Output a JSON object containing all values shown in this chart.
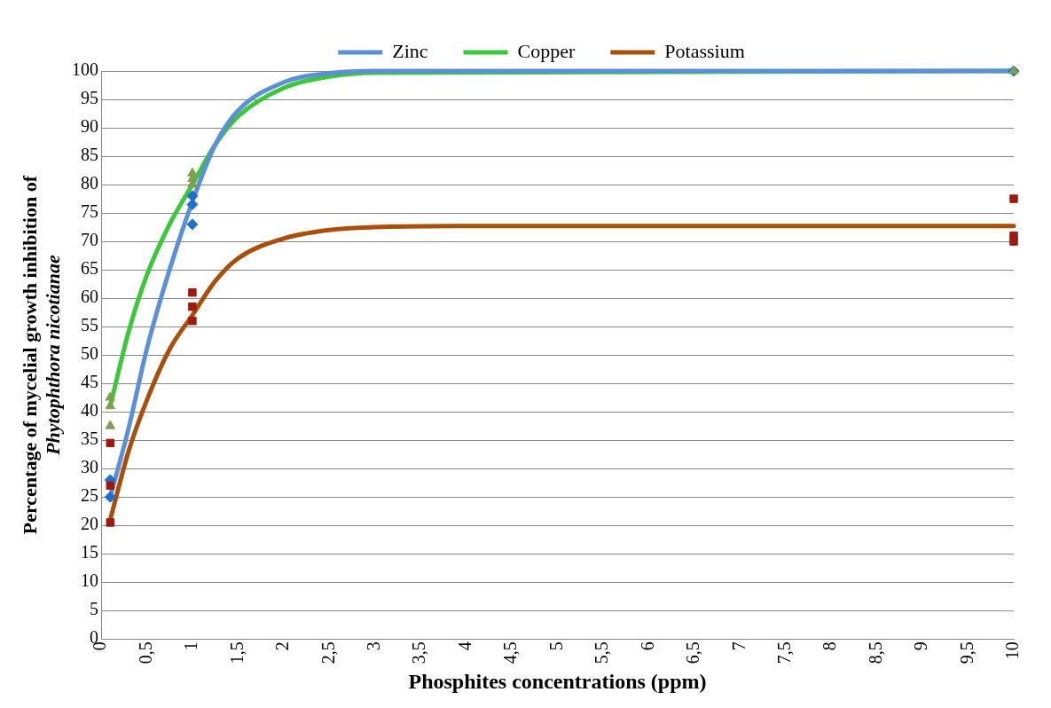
{
  "chart_data": {
    "type": "scatter",
    "xlabel": "Phosphites concentrations (ppm)",
    "ylabel": "Percentage of mycelial growth inhibition of\nPhytophthora nicotianae",
    "xlim": [
      0,
      10
    ],
    "ylim": [
      0,
      100
    ],
    "xticks": [
      0,
      {
        "value": 0.5,
        "label": "0,5"
      },
      1,
      {
        "value": 1.5,
        "label": "1,5"
      },
      2,
      {
        "value": 2.5,
        "label": "2,5"
      },
      3,
      {
        "value": 3.5,
        "label": "3,5"
      },
      4,
      {
        "value": 4.5,
        "label": "4,5"
      },
      5,
      {
        "value": 5.5,
        "label": "5,5"
      },
      6,
      {
        "value": 6.5,
        "label": "6,5"
      },
      7,
      {
        "value": 7.5,
        "label": "7,5"
      },
      8,
      {
        "value": 8.5,
        "label": "8,5"
      },
      9,
      {
        "value": 9.5,
        "label": "9,5"
      },
      10
    ],
    "yticks": [
      0,
      5,
      10,
      15,
      20,
      25,
      30,
      35,
      40,
      45,
      50,
      55,
      60,
      65,
      70,
      75,
      80,
      85,
      90,
      95,
      100
    ],
    "grid": "y",
    "legend": "top",
    "series": [
      {
        "type": "scatter",
        "marker": "diamond",
        "color": "#1f6fd0",
        "x": [
          0.1,
          0.1,
          1,
          1,
          1,
          10
        ],
        "values": [
          25,
          28,
          78,
          76.5,
          73,
          100
        ]
      },
      {
        "type": "scatter",
        "marker": "triangle",
        "color": "#7f9f4f",
        "x": [
          0.1,
          0.1,
          0.1,
          1,
          1,
          1,
          10
        ],
        "values": [
          42.5,
          41,
          37.5,
          82,
          81,
          80,
          100
        ]
      },
      {
        "type": "scatter",
        "marker": "square",
        "color": "#9c1b10",
        "x": [
          0.1,
          0.1,
          0.1,
          1,
          1,
          1,
          10,
          10,
          10
        ],
        "values": [
          34.5,
          27,
          20.5,
          61,
          58.5,
          56,
          77.5,
          71,
          70
        ]
      },
      {
        "type": "line",
        "name": "Zinc",
        "color": "#5b8fd6",
        "x": [
          0.1,
          0.3,
          0.5,
          0.75,
          1,
          1.25,
          1.5,
          2,
          2.5,
          3,
          10
        ],
        "values": [
          25,
          37,
          51,
          65,
          77,
          87,
          93,
          98,
          99.6,
          100,
          100
        ]
      },
      {
        "type": "line",
        "name": "Copper",
        "color": "#3cc63c",
        "x": [
          0.1,
          0.3,
          0.5,
          0.75,
          1,
          1.25,
          1.5,
          2,
          2.5,
          3,
          10
        ],
        "values": [
          41,
          54,
          64,
          73,
          80,
          87,
          92,
          97,
          99,
          99.7,
          100
        ]
      },
      {
        "type": "line",
        "name": "Potassium",
        "color": "#a84f0c",
        "x": [
          0.1,
          0.3,
          0.5,
          0.75,
          1,
          1.25,
          1.5,
          2,
          2.5,
          3,
          4,
          10
        ],
        "values": [
          21,
          33,
          42,
          51,
          57,
          63,
          67,
          70.5,
          72,
          72.5,
          72.7,
          72.7
        ]
      }
    ]
  }
}
